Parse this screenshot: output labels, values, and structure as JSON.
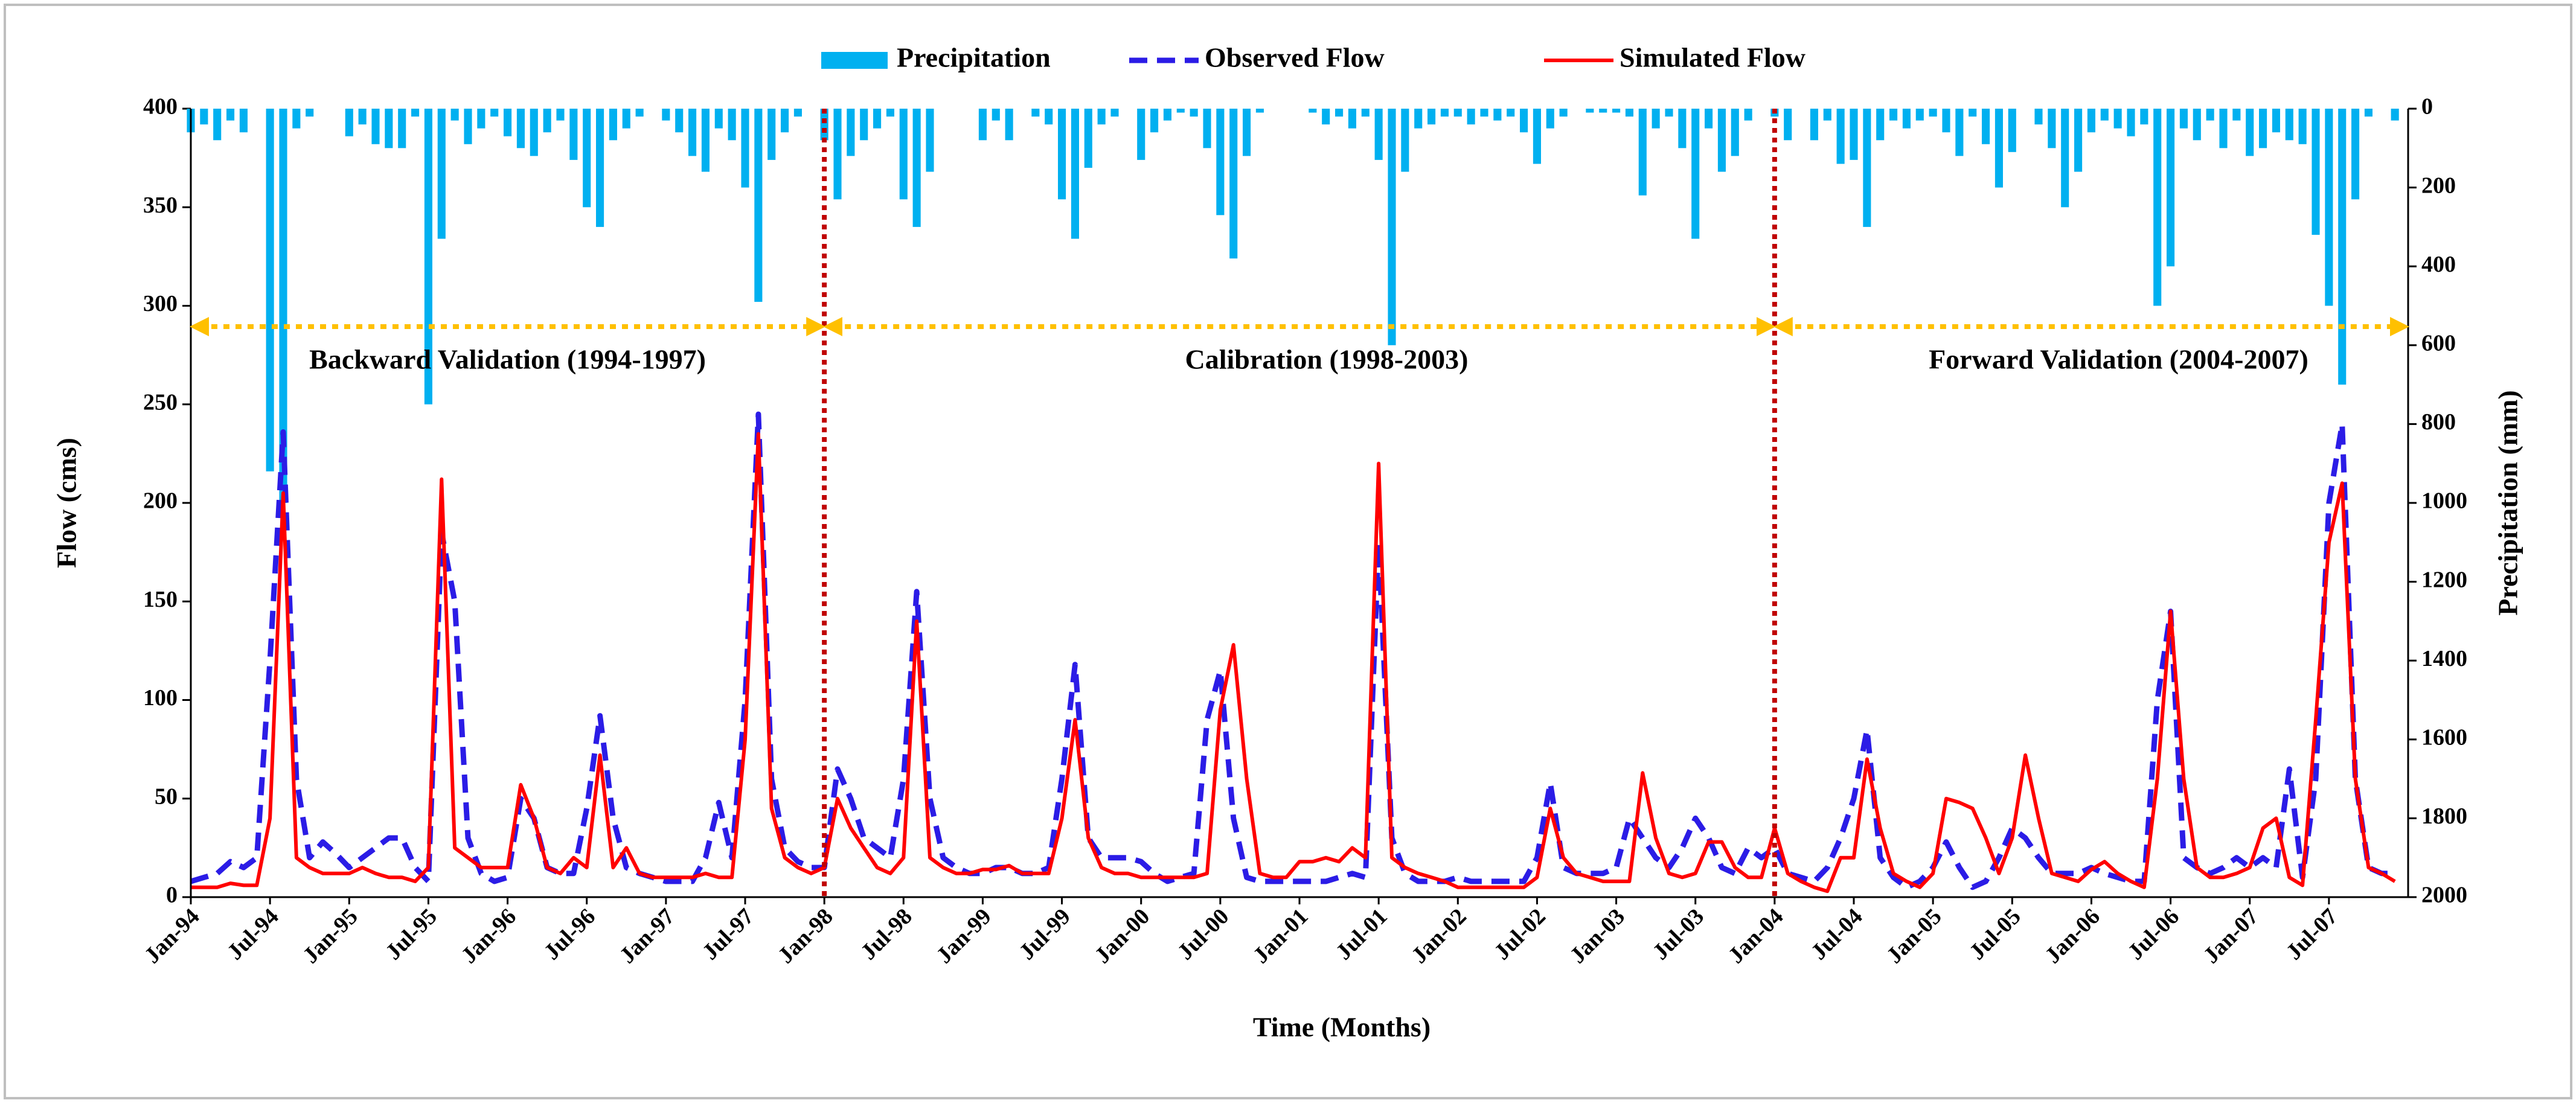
{
  "chart_data": {
    "type": "line",
    "x_label": "Time (Months)",
    "y_label": "Flow (cms)",
    "y2_label": "Precipitation (mm)",
    "ylim": [
      0,
      400
    ],
    "yticks": [
      0,
      50,
      100,
      150,
      200,
      250,
      300,
      350,
      400
    ],
    "y2lim": [
      2000,
      0
    ],
    "y2ticks": [
      0,
      200,
      400,
      600,
      800,
      1000,
      1200,
      1400,
      1600,
      1800,
      2000
    ],
    "dividers": [
      "Jan-98",
      "Jan-04"
    ],
    "annotations": [
      {
        "text": "Backward Validation (1994-1997)"
      },
      {
        "text": "Calibration (1998-2003)"
      },
      {
        "text": "Forward Validation (2004-2007)"
      }
    ],
    "categories": [
      "Jan-94",
      null,
      null,
      null,
      null,
      null,
      "Jul-94",
      null,
      null,
      null,
      null,
      null,
      "Jan-95",
      null,
      null,
      null,
      null,
      null,
      "Jul-95",
      null,
      null,
      null,
      null,
      null,
      "Jan-96",
      null,
      null,
      null,
      null,
      null,
      "Jul-96",
      null,
      null,
      null,
      null,
      null,
      "Jan-97",
      null,
      null,
      null,
      null,
      null,
      "Jul-97",
      null,
      null,
      null,
      null,
      null,
      "Jan-98",
      null,
      null,
      null,
      null,
      null,
      "Jul-98",
      null,
      null,
      null,
      null,
      null,
      "Jan-99",
      null,
      null,
      null,
      null,
      null,
      "Jul-99",
      null,
      null,
      null,
      null,
      null,
      "Jan-00",
      null,
      null,
      null,
      null,
      null,
      "Jul-00",
      null,
      null,
      null,
      null,
      null,
      "Jan-01",
      null,
      null,
      null,
      null,
      null,
      "Jul-01",
      null,
      null,
      null,
      null,
      null,
      "Jan-02",
      null,
      null,
      null,
      null,
      null,
      "Jul-02",
      null,
      null,
      null,
      null,
      null,
      "Jan-03",
      null,
      null,
      null,
      null,
      null,
      "Jul-03",
      null,
      null,
      null,
      null,
      null,
      "Jan-04",
      null,
      null,
      null,
      null,
      null,
      "Jul-04",
      null,
      null,
      null,
      null,
      null,
      "Jan-05",
      null,
      null,
      null,
      null,
      null,
      "Jul-05",
      null,
      null,
      null,
      null,
      null,
      "Jan-06",
      null,
      null,
      null,
      null,
      null,
      "Jul-06",
      null,
      null,
      null,
      null,
      null,
      "Jan-07",
      null,
      null,
      null,
      null,
      null,
      "Jul-07",
      null,
      null,
      null,
      null,
      null
    ],
    "series": [
      {
        "name": "Precipitation",
        "type": "bar",
        "axis": "y2",
        "color": "#00b0f0",
        "values": [
          60,
          40,
          80,
          30,
          60,
          0,
          920,
          1000,
          50,
          20,
          0,
          0,
          70,
          40,
          90,
          100,
          100,
          20,
          750,
          330,
          30,
          90,
          50,
          20,
          70,
          100,
          120,
          60,
          30,
          130,
          250,
          300,
          80,
          50,
          20,
          0,
          30,
          60,
          120,
          160,
          50,
          80,
          200,
          490,
          130,
          60,
          20,
          0,
          80,
          230,
          120,
          80,
          50,
          20,
          230,
          300,
          160,
          0,
          0,
          0,
          80,
          30,
          80,
          0,
          20,
          40,
          230,
          330,
          150,
          40,
          20,
          0,
          130,
          60,
          30,
          10,
          20,
          100,
          270,
          380,
          120,
          10,
          0,
          0,
          0,
          10,
          40,
          20,
          50,
          20,
          130,
          600,
          160,
          50,
          40,
          20,
          20,
          40,
          20,
          30,
          20,
          60,
          140,
          50,
          20,
          0,
          10,
          10,
          10,
          20,
          220,
          50,
          20,
          100,
          330,
          50,
          160,
          120,
          30,
          0,
          20,
          80,
          0,
          80,
          30,
          140,
          130,
          300,
          80,
          30,
          50,
          30,
          20,
          60,
          120,
          20,
          90,
          200,
          110,
          0,
          40,
          100,
          250,
          160,
          60,
          30,
          50,
          70,
          40,
          500,
          400,
          50,
          80,
          30,
          100,
          30,
          120,
          100,
          60,
          80,
          90,
          320,
          500,
          700,
          230,
          20,
          0,
          30
        ]
      },
      {
        "name": "Observed Flow",
        "type": "line",
        "dash": true,
        "color": "#2b1ce6",
        "values": [
          8,
          10,
          12,
          18,
          15,
          20,
          120,
          236,
          60,
          20,
          28,
          22,
          15,
          20,
          25,
          30,
          30,
          15,
          8,
          185,
          150,
          30,
          12,
          8,
          10,
          50,
          40,
          15,
          12,
          12,
          45,
          92,
          40,
          15,
          12,
          10,
          8,
          8,
          8,
          20,
          48,
          20,
          100,
          245,
          60,
          25,
          18,
          15,
          15,
          65,
          50,
          30,
          25,
          20,
          60,
          155,
          50,
          20,
          15,
          12,
          12,
          15,
          15,
          12,
          12,
          15,
          60,
          118,
          30,
          20,
          20,
          20,
          18,
          12,
          8,
          10,
          12,
          90,
          115,
          40,
          10,
          8,
          8,
          8,
          8,
          8,
          8,
          10,
          12,
          10,
          180,
          30,
          12,
          8,
          8,
          8,
          10,
          8,
          8,
          8,
          8,
          8,
          20,
          58,
          15,
          12,
          12,
          12,
          15,
          40,
          30,
          20,
          15,
          25,
          40,
          30,
          15,
          12,
          25,
          20,
          25,
          12,
          10,
          8,
          15,
          30,
          50,
          85,
          20,
          10,
          5,
          8,
          15,
          28,
          15,
          5,
          8,
          20,
          35,
          30,
          20,
          12,
          12,
          12,
          15,
          12,
          10,
          8,
          8,
          100,
          145,
          20,
          15,
          12,
          15,
          20,
          15,
          20,
          15,
          65,
          10,
          60,
          200,
          240,
          60,
          15,
          12,
          12
        ]
      },
      {
        "name": "Simulated Flow",
        "type": "line",
        "dash": false,
        "color": "#ff0000",
        "values": [
          5,
          5,
          5,
          7,
          6,
          6,
          40,
          205,
          20,
          15,
          12,
          12,
          12,
          15,
          12,
          10,
          10,
          8,
          15,
          212,
          25,
          20,
          15,
          15,
          15,
          57,
          40,
          15,
          12,
          20,
          15,
          72,
          15,
          25,
          12,
          10,
          10,
          10,
          10,
          12,
          10,
          10,
          80,
          235,
          45,
          20,
          15,
          12,
          15,
          50,
          35,
          25,
          15,
          12,
          20,
          140,
          20,
          15,
          12,
          12,
          14,
          14,
          16,
          12,
          12,
          12,
          40,
          90,
          30,
          15,
          12,
          12,
          10,
          10,
          10,
          10,
          10,
          12,
          95,
          128,
          60,
          12,
          10,
          10,
          18,
          18,
          20,
          18,
          25,
          20,
          220,
          20,
          15,
          12,
          10,
          8,
          5,
          5,
          5,
          5,
          5,
          5,
          10,
          45,
          20,
          12,
          10,
          8,
          8,
          8,
          63,
          30,
          12,
          10,
          12,
          28,
          28,
          15,
          10,
          10,
          35,
          12,
          8,
          5,
          3,
          20,
          20,
          70,
          35,
          12,
          8,
          5,
          12,
          50,
          48,
          45,
          30,
          12,
          30,
          72,
          40,
          12,
          10,
          8,
          14,
          18,
          12,
          8,
          5,
          60,
          145,
          60,
          15,
          10,
          10,
          12,
          15,
          35,
          40,
          10,
          6,
          90,
          180,
          210,
          60,
          15,
          12,
          8
        ]
      }
    ]
  }
}
